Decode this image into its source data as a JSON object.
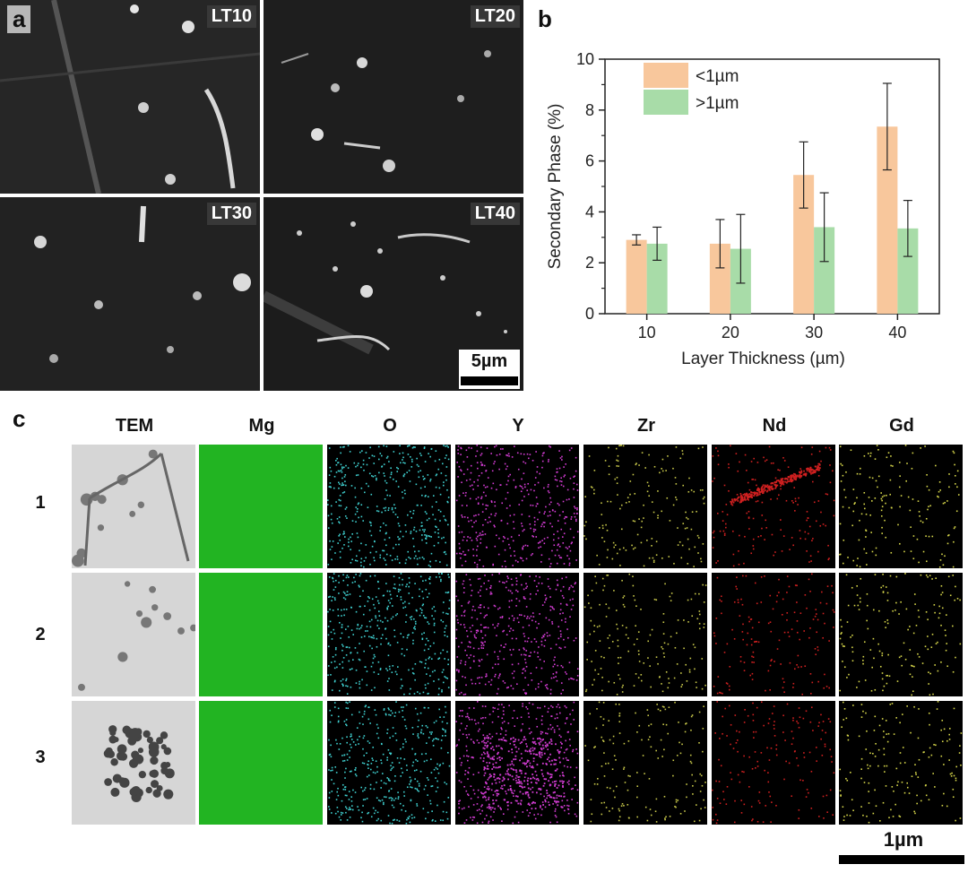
{
  "panel_letters": {
    "a": "a",
    "b": "b",
    "c": "c"
  },
  "sem_panels": [
    {
      "label": "LT10"
    },
    {
      "label": "LT20"
    },
    {
      "label": "LT30"
    },
    {
      "label": "LT40"
    }
  ],
  "sem_scalebar": "5µm",
  "tem_grid": {
    "columns": [
      "TEM",
      "Mg",
      "O",
      "Y",
      "Zr",
      "Nd",
      "Gd"
    ],
    "rows": [
      "1",
      "2",
      "3"
    ],
    "scalebar": "1µm",
    "colors": {
      "TEM": "#c8c8c8",
      "Mg": "#1fb81f",
      "O": "#3fd0d0",
      "Y": "#d23cd2",
      "Zr": "#c8c84a",
      "Nd": "#d02020",
      "Gd": "#d6d64a"
    }
  },
  "chart_data": {
    "type": "bar",
    "xlabel": "Layer Thickness (µm)",
    "ylabel": "Secondary Phase (%)",
    "categories": [
      "10",
      "20",
      "30",
      "40"
    ],
    "ylim": [
      0,
      10
    ],
    "yticks": [
      "0",
      "2",
      "4",
      "6",
      "8",
      "10"
    ],
    "legend_position": "top-left",
    "series": [
      {
        "name": "<1µm",
        "color": "#f8c79c",
        "values": [
          2.9,
          2.75,
          5.45,
          7.35
        ],
        "errors": [
          0.2,
          0.95,
          1.3,
          1.7
        ]
      },
      {
        "name": ">1µm",
        "color": "#a8dca8",
        "values": [
          2.75,
          2.55,
          3.4,
          3.35
        ],
        "errors": [
          0.65,
          1.35,
          1.35,
          1.1
        ]
      }
    ]
  }
}
